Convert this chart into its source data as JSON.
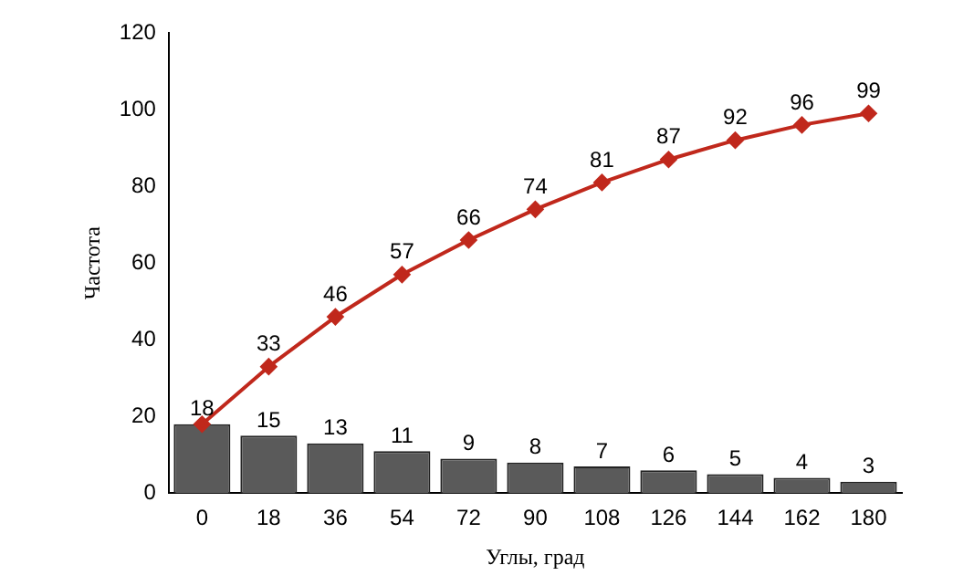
{
  "chart_data": {
    "type": "bar",
    "xlabel": "Углы, град",
    "ylabel": "Частота",
    "categories": [
      "0",
      "18",
      "36",
      "54",
      "72",
      "90",
      "108",
      "126",
      "144",
      "162",
      "180"
    ],
    "series": [
      {
        "color": "#5a5a5a",
        "values": [
          18,
          15,
          13,
          11,
          9,
          8,
          7,
          6,
          5,
          4,
          3
        ],
        "value_labels": [
          "18",
          "15",
          "13",
          "11",
          "9",
          "8",
          "7",
          "6",
          "5",
          "4",
          "3"
        ]
      },
      {
        "type": "line",
        "color": "#c0281c",
        "values": [
          18,
          33,
          46,
          57,
          66,
          74,
          81,
          87,
          92,
          96,
          99
        ],
        "value_labels": [
          null,
          "33",
          "46",
          "57",
          "66",
          "74",
          "81",
          "87",
          "92",
          "96",
          "99"
        ]
      }
    ],
    "ylim": [
      0,
      120
    ],
    "yticks": [
      0,
      20,
      40,
      60,
      80,
      100,
      120
    ],
    "grid": false,
    "legend": false,
    "marker": "diamond",
    "line_style": "solid"
  }
}
